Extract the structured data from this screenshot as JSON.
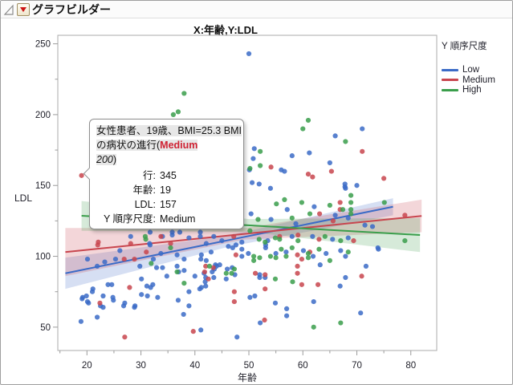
{
  "window": {
    "title": "グラフビルダー"
  },
  "chart_data": {
    "type": "scatter",
    "title": "X:年齢,Y:LDL",
    "xlabel": "年齢",
    "ylabel": "LDL",
    "xlim": [
      14.6,
      84.8
    ],
    "ylim": [
      33.5,
      256
    ],
    "x_ticks": [
      20,
      30,
      40,
      50,
      60,
      70,
      80
    ],
    "x_minor_ticks": [
      15,
      25,
      35,
      45,
      55,
      65,
      75
    ],
    "y_ticks": [
      50,
      100,
      150,
      200,
      250
    ],
    "y_minor_ticks": [
      75,
      125,
      175,
      225
    ],
    "grid": false,
    "legend_title": "Y 順序尺度",
    "legend_position": "right",
    "series": [
      {
        "name": "Low",
        "marker_color": "#3b6bc7",
        "band_color": "rgba(70,110,200,0.22)",
        "fit_line": {
          "x": [
            16,
            76.7
          ],
          "y": [
            88,
            135
          ]
        },
        "band": {
          "x": [
            16,
            46,
            76.7
          ],
          "upper": [
            99,
            114.5,
            141
          ],
          "lower": [
            77,
            106.5,
            129
          ]
        },
        "points": [
          [
            50,
            243
          ],
          [
            71,
            190
          ],
          [
            66,
            185
          ],
          [
            51,
            176
          ],
          [
            50.8,
            169
          ],
          [
            58,
            171
          ],
          [
            50.1,
            161
          ],
          [
            56,
            161
          ],
          [
            56.6,
            160
          ],
          [
            65,
            166
          ],
          [
            61.2,
            173
          ],
          [
            67.8,
            151
          ],
          [
            67.8,
            149
          ],
          [
            70,
            150
          ],
          [
            50.6,
            152
          ],
          [
            51.9,
            151
          ],
          [
            54,
            148
          ],
          [
            72.9,
            121
          ],
          [
            71.5,
            122
          ],
          [
            73.9,
            106
          ],
          [
            74,
            105
          ],
          [
            71.7,
            93
          ],
          [
            70.7,
            60
          ],
          [
            67.9,
            100
          ],
          [
            66.9,
            79
          ],
          [
            67.9,
            85
          ],
          [
            63.2,
            94
          ],
          [
            61.9,
            100
          ],
          [
            62,
            68
          ],
          [
            57,
            58
          ],
          [
            57,
            63
          ],
          [
            52.1,
            53
          ],
          [
            54.9,
            67
          ],
          [
            53,
            85
          ],
          [
            53.1,
            108
          ],
          [
            53.1,
            106
          ],
          [
            55,
            102
          ],
          [
            50.2,
            71
          ],
          [
            51.1,
            72
          ],
          [
            52,
            87
          ],
          [
            52,
            85
          ],
          [
            48.7,
            110
          ],
          [
            53.5,
            111
          ],
          [
            58,
            114
          ],
          [
            61.8,
            114
          ],
          [
            65.5,
            112
          ],
          [
            68.4,
            113
          ],
          [
            56.9,
            103
          ],
          [
            60.1,
            104
          ],
          [
            64.3,
            102
          ],
          [
            67,
            104
          ],
          [
            67.9,
            148
          ],
          [
            50.4,
            130
          ],
          [
            54.1,
            126
          ],
          [
            57.1,
            133
          ],
          [
            58.7,
            123
          ],
          [
            62.1,
            135
          ],
          [
            66,
            129
          ],
          [
            68.4,
            127
          ],
          [
            31.7,
            117
          ],
          [
            31.7,
            108
          ],
          [
            33.7,
            102
          ],
          [
            32.3,
            98
          ],
          [
            36.7,
            101
          ],
          [
            38,
            98
          ],
          [
            36.7,
            93
          ],
          [
            38,
            90
          ],
          [
            41,
            114
          ],
          [
            41,
            117
          ],
          [
            42.1,
            109
          ],
          [
            43.5,
            114
          ],
          [
            45,
            111
          ],
          [
            46.2,
            107
          ],
          [
            47.6,
            108
          ],
          [
            48.7,
            105
          ],
          [
            48.7,
            100
          ],
          [
            49.9,
            102
          ],
          [
            42.1,
            97
          ],
          [
            43.6,
            91
          ],
          [
            44.6,
            94
          ],
          [
            46,
            91
          ],
          [
            43.5,
            85
          ],
          [
            45.8,
            84
          ],
          [
            47.4,
            87
          ],
          [
            35.8,
            117
          ],
          [
            37.2,
            117
          ],
          [
            20.1,
            98
          ],
          [
            21.9,
            93
          ],
          [
            23.3,
            96
          ],
          [
            25.3,
            98
          ],
          [
            26.1,
            104
          ],
          [
            28.1,
            114
          ],
          [
            29.8,
            93
          ],
          [
            31.6,
            109
          ],
          [
            34,
            114
          ],
          [
            35.8,
            115
          ],
          [
            38.9,
            113
          ],
          [
            41.2,
            101
          ],
          [
            41.1,
            98
          ],
          [
            43,
            103
          ],
          [
            43.8,
            94
          ],
          [
            47,
            106
          ],
          [
            46.9,
            92
          ],
          [
            41.2,
            78
          ],
          [
            31.8,
            78
          ],
          [
            24.8,
            71
          ],
          [
            19.2,
            71
          ],
          [
            20.3,
            67
          ],
          [
            22.5,
            65
          ],
          [
            21.1,
            77
          ],
          [
            26.8,
            65
          ],
          [
            28.9,
            65
          ],
          [
            19.1,
            70
          ],
          [
            19.9,
            72
          ],
          [
            21,
            75
          ],
          [
            20.1,
            68
          ],
          [
            23,
            72
          ],
          [
            23,
            64
          ],
          [
            23.9,
            80
          ],
          [
            24.6,
            80
          ],
          [
            24.9,
            69
          ],
          [
            27,
            67
          ],
          [
            28.8,
            64
          ],
          [
            30.1,
            84
          ],
          [
            31.1,
            79
          ],
          [
            30.1,
            73
          ],
          [
            31.2,
            72
          ],
          [
            32.2,
            80
          ],
          [
            33.1,
            71
          ],
          [
            34.8,
            86
          ],
          [
            34,
            92
          ],
          [
            32.9,
            92
          ],
          [
            37,
            89
          ],
          [
            40,
            86
          ],
          [
            41.7,
            88
          ],
          [
            42,
            85
          ],
          [
            41.9,
            82
          ],
          [
            42,
            79
          ],
          [
            38.9,
            75
          ],
          [
            40.9,
            77
          ],
          [
            36.9,
            69
          ],
          [
            38.9,
            65
          ],
          [
            37.9,
            59
          ],
          [
            21.9,
            57
          ],
          [
            18.9,
            54
          ],
          [
            41.1,
            48
          ],
          [
            43.2,
            89
          ],
          [
            44,
            93
          ],
          [
            47.8,
            43
          ]
        ]
      },
      {
        "name": "Medium",
        "marker_color": "#c8454e",
        "band_color": "rgba(200,70,80,0.22)",
        "fit_line": {
          "x": [
            16,
            82
          ],
          "y": [
            103,
            128.5
          ]
        },
        "band": {
          "x": [
            16,
            49,
            82
          ],
          "upper": [
            120,
            119.8,
            140
          ],
          "lower": [
            86,
            111.8,
            117
          ]
        },
        "points": [
          [
            19,
            157
          ],
          [
            71,
            174
          ],
          [
            27,
            43
          ],
          [
            39.7,
            47
          ],
          [
            42,
            93
          ],
          [
            43.4,
            92
          ],
          [
            47.3,
            75
          ],
          [
            47.3,
            68
          ],
          [
            22,
            108
          ],
          [
            26.9,
            98
          ],
          [
            28.8,
            98
          ],
          [
            31,
            103
          ],
          [
            27.9,
            78
          ],
          [
            52.9,
            55
          ],
          [
            53,
            77
          ],
          [
            59.8,
            80
          ],
          [
            62.8,
            80
          ],
          [
            70.9,
            86
          ],
          [
            59,
            93
          ],
          [
            59,
            88
          ],
          [
            59,
            101
          ],
          [
            59.8,
            98
          ],
          [
            51.2,
            88
          ],
          [
            53,
            87
          ],
          [
            54.1,
            163
          ],
          [
            61,
            158
          ],
          [
            61.8,
            156
          ],
          [
            65.3,
            160
          ],
          [
            75,
            155
          ],
          [
            63.1,
            130
          ],
          [
            65.6,
            125
          ],
          [
            47.2,
            114
          ],
          [
            55.7,
            114
          ],
          [
            59.1,
            115
          ],
          [
            63,
            112
          ],
          [
            61.3,
            103
          ],
          [
            69.4,
            111
          ],
          [
            66.9,
            138
          ],
          [
            66.9,
            133
          ],
          [
            78.9,
            129
          ],
          [
            33.7,
            114
          ],
          [
            35.5,
            109
          ],
          [
            41.8,
            89
          ],
          [
            42.5,
            84
          ],
          [
            47.6,
            101
          ],
          [
            22.4,
            67
          ],
          [
            28.1,
            109
          ],
          [
            22.1,
            110
          ]
        ]
      },
      {
        "name": "High",
        "marker_color": "#3a9e4b",
        "band_color": "rgba(70,160,80,0.22)",
        "fit_line": {
          "x": [
            19,
            81.7
          ],
          "y": [
            128.6,
            115
          ]
        },
        "band": {
          "x": [
            19,
            50,
            81.7
          ],
          "upper": [
            139,
            126.3,
            127
          ],
          "lower": [
            118,
            117.3,
            103
          ]
        },
        "points": [
          [
            61,
            196
          ],
          [
            60,
            190
          ],
          [
            67.9,
            181
          ],
          [
            52.1,
            174
          ],
          [
            52.1,
            164
          ],
          [
            38,
            215
          ],
          [
            36,
            200
          ],
          [
            36.9,
            202
          ],
          [
            38,
            81
          ],
          [
            45.8,
            88
          ],
          [
            46.8,
            88
          ],
          [
            30.9,
            112
          ],
          [
            31.9,
            95
          ],
          [
            62,
            50
          ],
          [
            67,
            53
          ],
          [
            54.9,
            84
          ],
          [
            58.1,
            82
          ],
          [
            65,
            97
          ],
          [
            61,
            99
          ],
          [
            55,
            99
          ],
          [
            56.9,
            100
          ],
          [
            54,
            100
          ],
          [
            52,
            99
          ],
          [
            50.9,
            100
          ],
          [
            50.9,
            97
          ],
          [
            53,
            110
          ],
          [
            54.9,
            113
          ],
          [
            61,
            102
          ],
          [
            56.6,
            140
          ],
          [
            59.8,
            138
          ],
          [
            50.2,
            162
          ],
          [
            48.6,
            135
          ],
          [
            51.7,
            126
          ],
          [
            55.1,
            137
          ],
          [
            58,
            127
          ],
          [
            61.3,
            130
          ],
          [
            65,
            136
          ],
          [
            67.4,
            133
          ],
          [
            50.2,
            118
          ],
          [
            51.9,
            112
          ],
          [
            55.7,
            112
          ],
          [
            59.1,
            111
          ],
          [
            64.1,
            114
          ],
          [
            67,
            111
          ],
          [
            56,
            105
          ],
          [
            58,
            106
          ],
          [
            63,
            105
          ],
          [
            68.4,
            103
          ],
          [
            68.9,
            143
          ],
          [
            68.9,
            138
          ],
          [
            68.9,
            133
          ],
          [
            68.9,
            130
          ],
          [
            75.1,
            138
          ],
          [
            78.9,
            111
          ],
          [
            30.8,
            114
          ],
          [
            35.5,
            106
          ],
          [
            36.7,
            89
          ],
          [
            42.7,
            93
          ],
          [
            47.3,
            91
          ]
        ]
      }
    ]
  },
  "tooltip": {
    "highlight_color": "#e7e7e7",
    "accent_color": "#cf2233",
    "annotation_lines": [
      [
        {
          "t": "女性患者、19歳、BMI=25.3 BMI",
          "s": "hl"
        }
      ],
      [
        {
          "t": "の病状の進行(",
          "s": "hl"
        },
        {
          "t": "Medium",
          "s": "hl red"
        }
      ],
      [
        {
          "t": "200",
          "s": "hl italic"
        },
        {
          "t": ")",
          "s": "hl"
        }
      ]
    ],
    "rows": [
      {
        "label": "行:",
        "value": "345"
      },
      {
        "label": "年齢:",
        "value": "19"
      },
      {
        "label": "LDL:",
        "value": "157"
      },
      {
        "label": "Y 順序尺度:",
        "value": "Medium"
      }
    ],
    "target": {
      "age": 19,
      "ldl": 157,
      "series": "Medium"
    }
  }
}
